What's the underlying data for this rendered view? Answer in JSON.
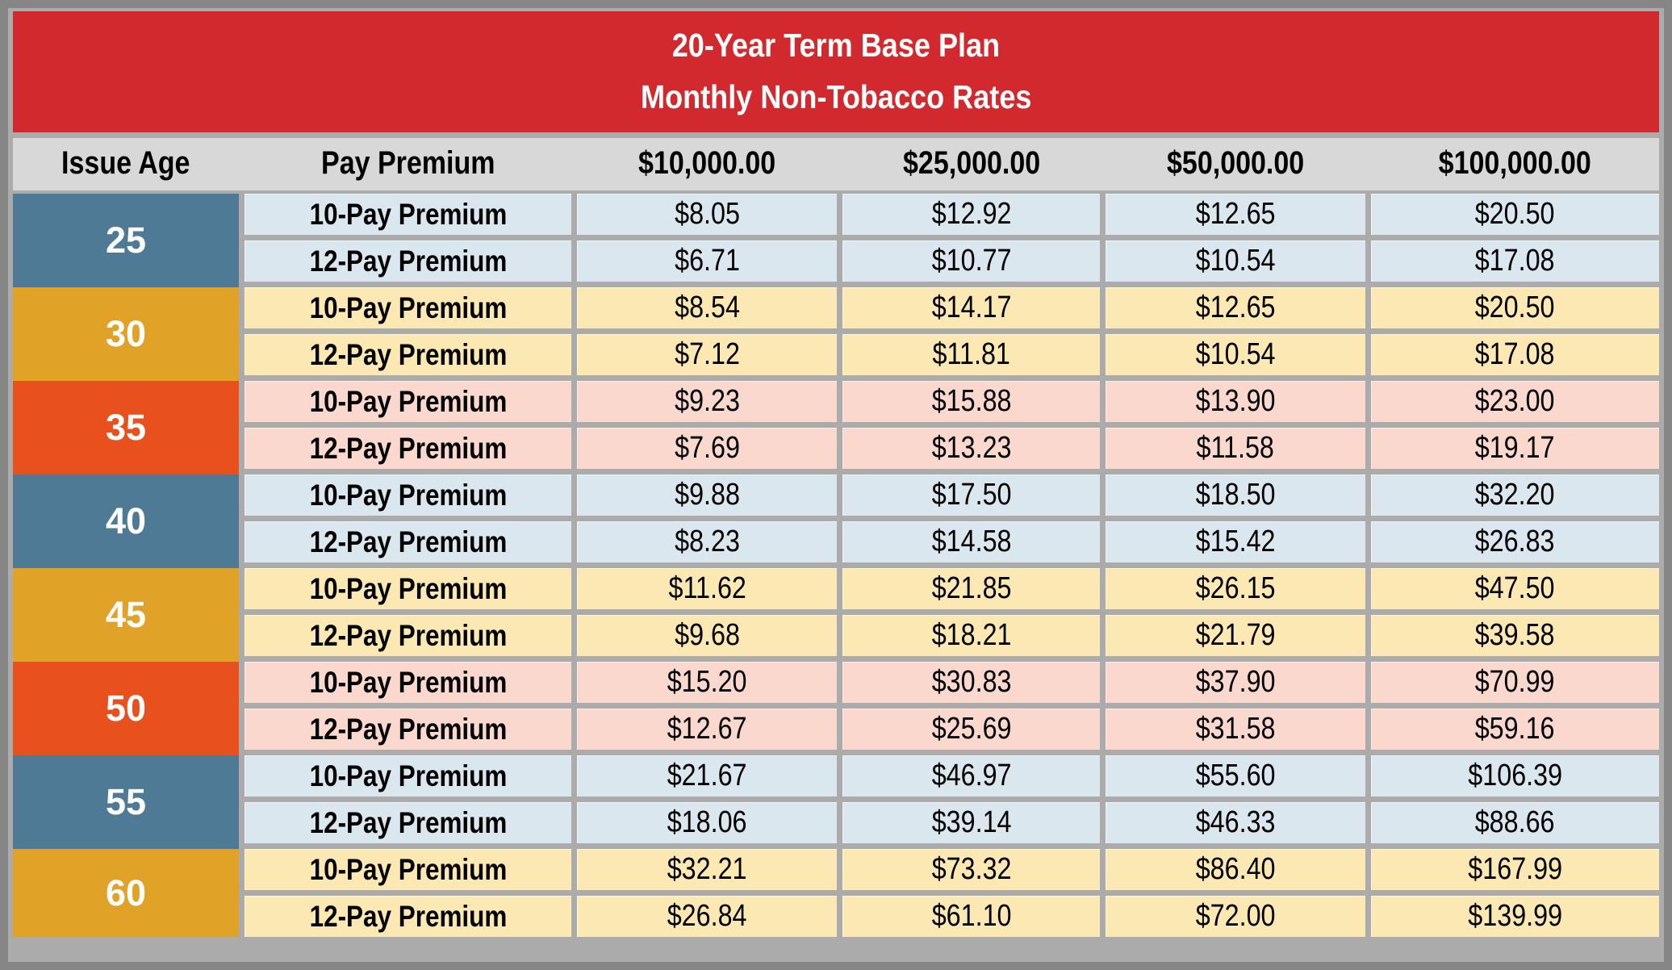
{
  "title": {
    "line1": "20-Year Term Base Plan",
    "line2": "Monthly Non-Tobacco Rates"
  },
  "columns": [
    "Issue Age",
    "Pay Premium",
    "$10,000.00",
    "$25,000.00",
    "$50,000.00",
    "$100,000.00"
  ],
  "age_groups": [
    {
      "age": "25",
      "theme": "blue",
      "rows": [
        {
          "label": "10-Pay Premium",
          "values": [
            "$8.05",
            "$12.92",
            "$12.65",
            "$20.50"
          ]
        },
        {
          "label": "12-Pay Premium",
          "values": [
            "$6.71",
            "$10.77",
            "$10.54",
            "$17.08"
          ]
        }
      ]
    },
    {
      "age": "30",
      "theme": "gold",
      "rows": [
        {
          "label": "10-Pay Premium",
          "values": [
            "$8.54",
            "$14.17",
            "$12.65",
            "$20.50"
          ]
        },
        {
          "label": "12-Pay Premium",
          "values": [
            "$7.12",
            "$11.81",
            "$10.54",
            "$17.08"
          ]
        }
      ]
    },
    {
      "age": "35",
      "theme": "orange",
      "rows": [
        {
          "label": "10-Pay Premium",
          "values": [
            "$9.23",
            "$15.88",
            "$13.90",
            "$23.00"
          ]
        },
        {
          "label": "12-Pay Premium",
          "values": [
            "$7.69",
            "$13.23",
            "$11.58",
            "$19.17"
          ]
        }
      ]
    },
    {
      "age": "40",
      "theme": "blue",
      "rows": [
        {
          "label": "10-Pay Premium",
          "values": [
            "$9.88",
            "$17.50",
            "$18.50",
            "$32.20"
          ]
        },
        {
          "label": "12-Pay Premium",
          "values": [
            "$8.23",
            "$14.58",
            "$15.42",
            "$26.83"
          ]
        }
      ]
    },
    {
      "age": "45",
      "theme": "gold",
      "rows": [
        {
          "label": "10-Pay Premium",
          "values": [
            "$11.62",
            "$21.85",
            "$26.15",
            "$47.50"
          ]
        },
        {
          "label": "12-Pay Premium",
          "values": [
            "$9.68",
            "$18.21",
            "$21.79",
            "$39.58"
          ]
        }
      ]
    },
    {
      "age": "50",
      "theme": "orange",
      "rows": [
        {
          "label": "10-Pay Premium",
          "values": [
            "$15.20",
            "$30.83",
            "$37.90",
            "$70.99"
          ]
        },
        {
          "label": "12-Pay Premium",
          "values": [
            "$12.67",
            "$25.69",
            "$31.58",
            "$59.16"
          ]
        }
      ]
    },
    {
      "age": "55",
      "theme": "blue",
      "rows": [
        {
          "label": "10-Pay Premium",
          "values": [
            "$21.67",
            "$46.97",
            "$55.60",
            "$106.39"
          ]
        },
        {
          "label": "12-Pay Premium",
          "values": [
            "$18.06",
            "$39.14",
            "$46.33",
            "$88.66"
          ]
        }
      ]
    },
    {
      "age": "60",
      "theme": "gold",
      "rows": [
        {
          "label": "10-Pay Premium",
          "values": [
            "$32.21",
            "$73.32",
            "$86.40",
            "$167.99"
          ]
        },
        {
          "label": "12-Pay Premium",
          "values": [
            "$26.84",
            "$61.10",
            "$72.00",
            "$139.99"
          ]
        }
      ]
    }
  ],
  "colors": {
    "banner_red": "#d2292e",
    "header_gray": "#d8d8d8",
    "age_blue": "#4f7a95",
    "age_gold": "#e0a328",
    "age_orange": "#e8501e",
    "tint_blue": "#dbe7ee",
    "tint_gold": "#fce8b2",
    "tint_orange": "#fad8cd",
    "grid_gray": "#ababab",
    "frame_gray": "#868686"
  },
  "chart_data": {
    "type": "table",
    "title": "20-Year Term Base Plan — Monthly Non-Tobacco Rates",
    "columns": [
      "Issue Age",
      "Pay Premium",
      "$10,000.00",
      "$25,000.00",
      "$50,000.00",
      "$100,000.00"
    ],
    "rows": [
      [
        "25",
        "10-Pay Premium",
        "$8.05",
        "$12.92",
        "$12.65",
        "$20.50"
      ],
      [
        "25",
        "12-Pay Premium",
        "$6.71",
        "$10.77",
        "$10.54",
        "$17.08"
      ],
      [
        "30",
        "10-Pay Premium",
        "$8.54",
        "$14.17",
        "$12.65",
        "$20.50"
      ],
      [
        "30",
        "12-Pay Premium",
        "$7.12",
        "$11.81",
        "$10.54",
        "$17.08"
      ],
      [
        "35",
        "10-Pay Premium",
        "$9.23",
        "$15.88",
        "$13.90",
        "$23.00"
      ],
      [
        "35",
        "12-Pay Premium",
        "$7.69",
        "$13.23",
        "$11.58",
        "$19.17"
      ],
      [
        "40",
        "10-Pay Premium",
        "$9.88",
        "$17.50",
        "$18.50",
        "$32.20"
      ],
      [
        "40",
        "12-Pay Premium",
        "$8.23",
        "$14.58",
        "$15.42",
        "$26.83"
      ],
      [
        "45",
        "10-Pay Premium",
        "$11.62",
        "$21.85",
        "$26.15",
        "$47.50"
      ],
      [
        "45",
        "12-Pay Premium",
        "$9.68",
        "$18.21",
        "$21.79",
        "$39.58"
      ],
      [
        "50",
        "10-Pay Premium",
        "$15.20",
        "$30.83",
        "$37.90",
        "$70.99"
      ],
      [
        "50",
        "12-Pay Premium",
        "$12.67",
        "$25.69",
        "$31.58",
        "$59.16"
      ],
      [
        "55",
        "10-Pay Premium",
        "$21.67",
        "$46.97",
        "$55.60",
        "$106.39"
      ],
      [
        "55",
        "12-Pay Premium",
        "$18.06",
        "$39.14",
        "$46.33",
        "$88.66"
      ],
      [
        "60",
        "10-Pay Premium",
        "$32.21",
        "$73.32",
        "$86.40",
        "$167.99"
      ],
      [
        "60",
        "12-Pay Premium",
        "$26.84",
        "$61.10",
        "$72.00",
        "$139.99"
      ]
    ]
  }
}
